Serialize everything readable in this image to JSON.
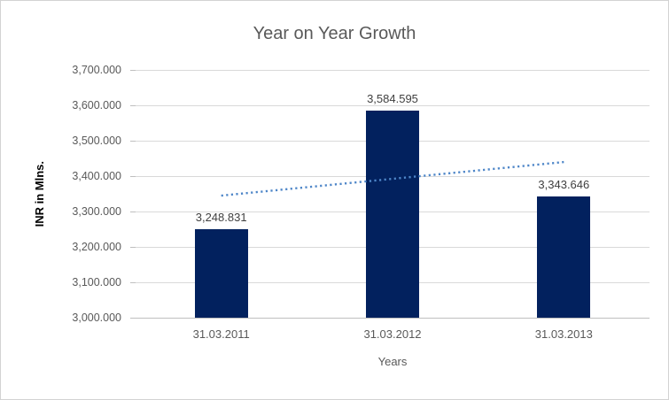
{
  "window": {
    "background": "#ffffff",
    "border_color": "#d3d3d3"
  },
  "chart_data": {
    "type": "bar",
    "title": "Year on Year Growth",
    "xlabel": "Years",
    "ylabel": "INR in Mlns.",
    "categories": [
      "31.03.2011",
      "31.03.2012",
      "31.03.2013"
    ],
    "values": [
      3248.831,
      3584.595,
      3343.646
    ],
    "data_labels": [
      "3,248.831",
      "3,584.595",
      "3,343.646"
    ],
    "ylim": [
      3000,
      3700
    ],
    "y_tick_step": 100,
    "y_tick_values_top_to_bottom": [
      3700,
      3600,
      3500,
      3400,
      3300,
      3200,
      3100,
      3000
    ],
    "y_tick_labels_top_to_bottom": [
      "3,700.000",
      "3,600.000",
      "3,500.000",
      "3,400.000",
      "3,300.000",
      "3,200.000",
      "3,100.000",
      "3,000.000"
    ],
    "grid": true,
    "legend": "none",
    "colors": {
      "bar": "#02215e",
      "gridline": "#d9d9d9",
      "axis_line": "#bfbfbf",
      "title_text": "#595959",
      "tick_text": "#595959",
      "data_label_text": "#404040",
      "y_axis_title_text": "#000000"
    },
    "trendline": {
      "type": "linear",
      "style": "dotted",
      "color": "#4e86c8",
      "endpoint_values": [
        3344.95,
        3439.76
      ]
    }
  }
}
